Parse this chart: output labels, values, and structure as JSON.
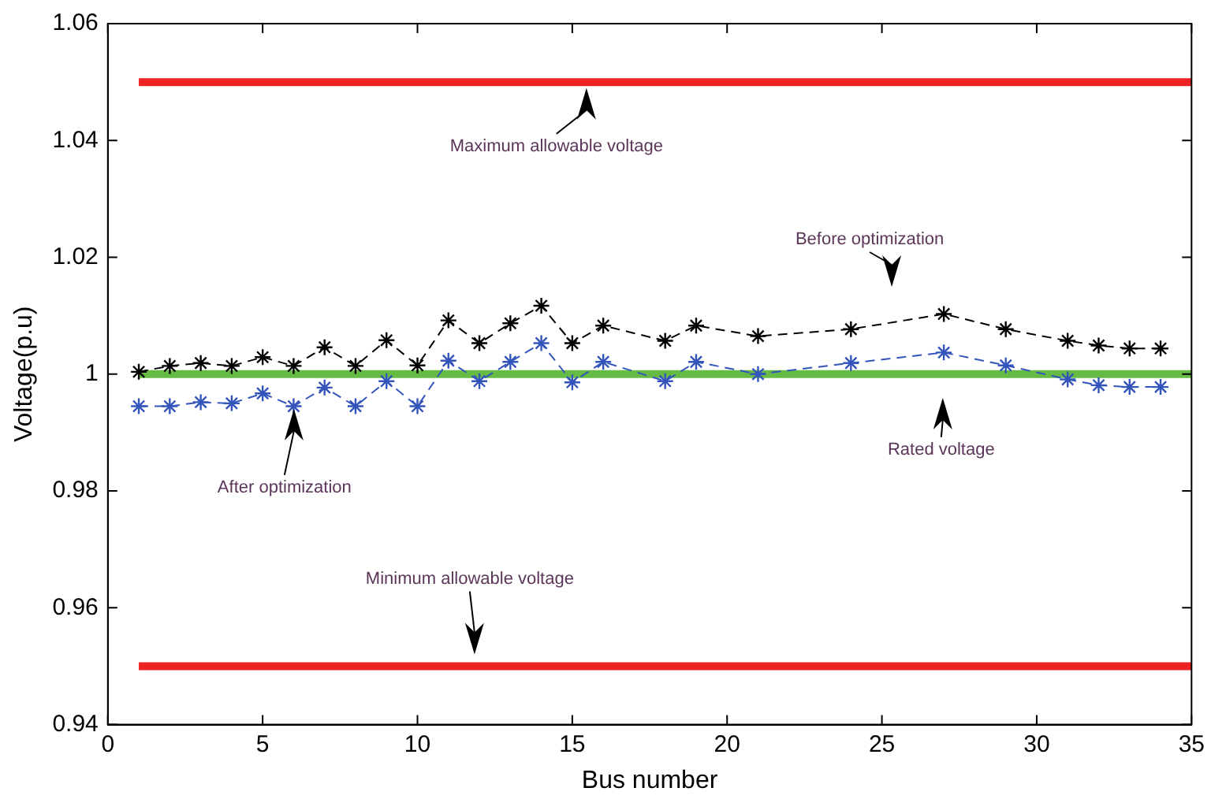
{
  "chart_data": {
    "type": "line",
    "xlabel": "Bus number",
    "ylabel": "Voltage(p.u)",
    "xlim": [
      0,
      35
    ],
    "xticks": [
      0,
      5,
      10,
      15,
      20,
      25,
      30,
      35
    ],
    "ylim": [
      0.94,
      1.06
    ],
    "yticks": [
      0.94,
      0.96,
      0.98,
      1,
      1.02,
      1.04,
      1.06
    ],
    "grid": false,
    "legend": false,
    "marker": "cross",
    "line_style": "dashed",
    "series": [
      {
        "color": "#ee2222",
        "x": [
          1,
          35
        ],
        "values": [
          1.05,
          1.05
        ],
        "marker": "none",
        "line_style": "solid"
      },
      {
        "color": "#ee2222",
        "x": [
          1,
          35
        ],
        "values": [
          0.95,
          0.95
        ],
        "marker": "none",
        "line_style": "solid"
      },
      {
        "color": "#66bb44",
        "x": [
          1,
          35
        ],
        "values": [
          1,
          1
        ],
        "marker": "none",
        "line_style": "solid"
      },
      {
        "color": "#000000",
        "x": [
          1,
          2,
          3,
          4,
          5,
          6,
          7,
          8,
          9,
          10,
          11,
          12,
          13,
          14,
          15,
          16,
          18,
          19,
          21,
          24,
          27,
          29,
          31,
          32,
          33,
          34
        ],
        "values": [
          1.0004,
          1.0014,
          1.0019,
          1.0014,
          1.0029,
          1.0014,
          1.0046,
          1.0014,
          1.0058,
          1.0015,
          1.0092,
          1.0053,
          1.0087,
          1.0117,
          1.0053,
          1.0083,
          1.0057,
          1.0083,
          1.0065,
          1.0077,
          1.0103,
          1.0077,
          1.0057,
          1.0049,
          1.0044,
          1.0044
        ]
      },
      {
        "color": "#3355bb",
        "x": [
          1,
          2,
          3,
          4,
          5,
          6,
          7,
          8,
          9,
          10,
          11,
          12,
          13,
          14,
          15,
          16,
          18,
          19,
          21,
          24,
          27,
          29,
          31,
          32,
          33,
          34
        ],
        "values": [
          0.9945,
          0.9945,
          0.9952,
          0.995,
          0.9967,
          0.9945,
          0.9977,
          0.9945,
          0.9988,
          0.9945,
          1.0023,
          0.9988,
          1.0021,
          1.0053,
          0.9986,
          1.0021,
          0.9988,
          1.0021,
          1,
          1.0019,
          1.0037,
          1.0015,
          0.9991,
          0.9981,
          0.9978,
          0.9978
        ]
      }
    ],
    "annotations": [
      "Maximum allowable voltage",
      "Minimum allowable voltage",
      "Before optimization",
      "After optimization",
      "Rated voltage"
    ]
  }
}
